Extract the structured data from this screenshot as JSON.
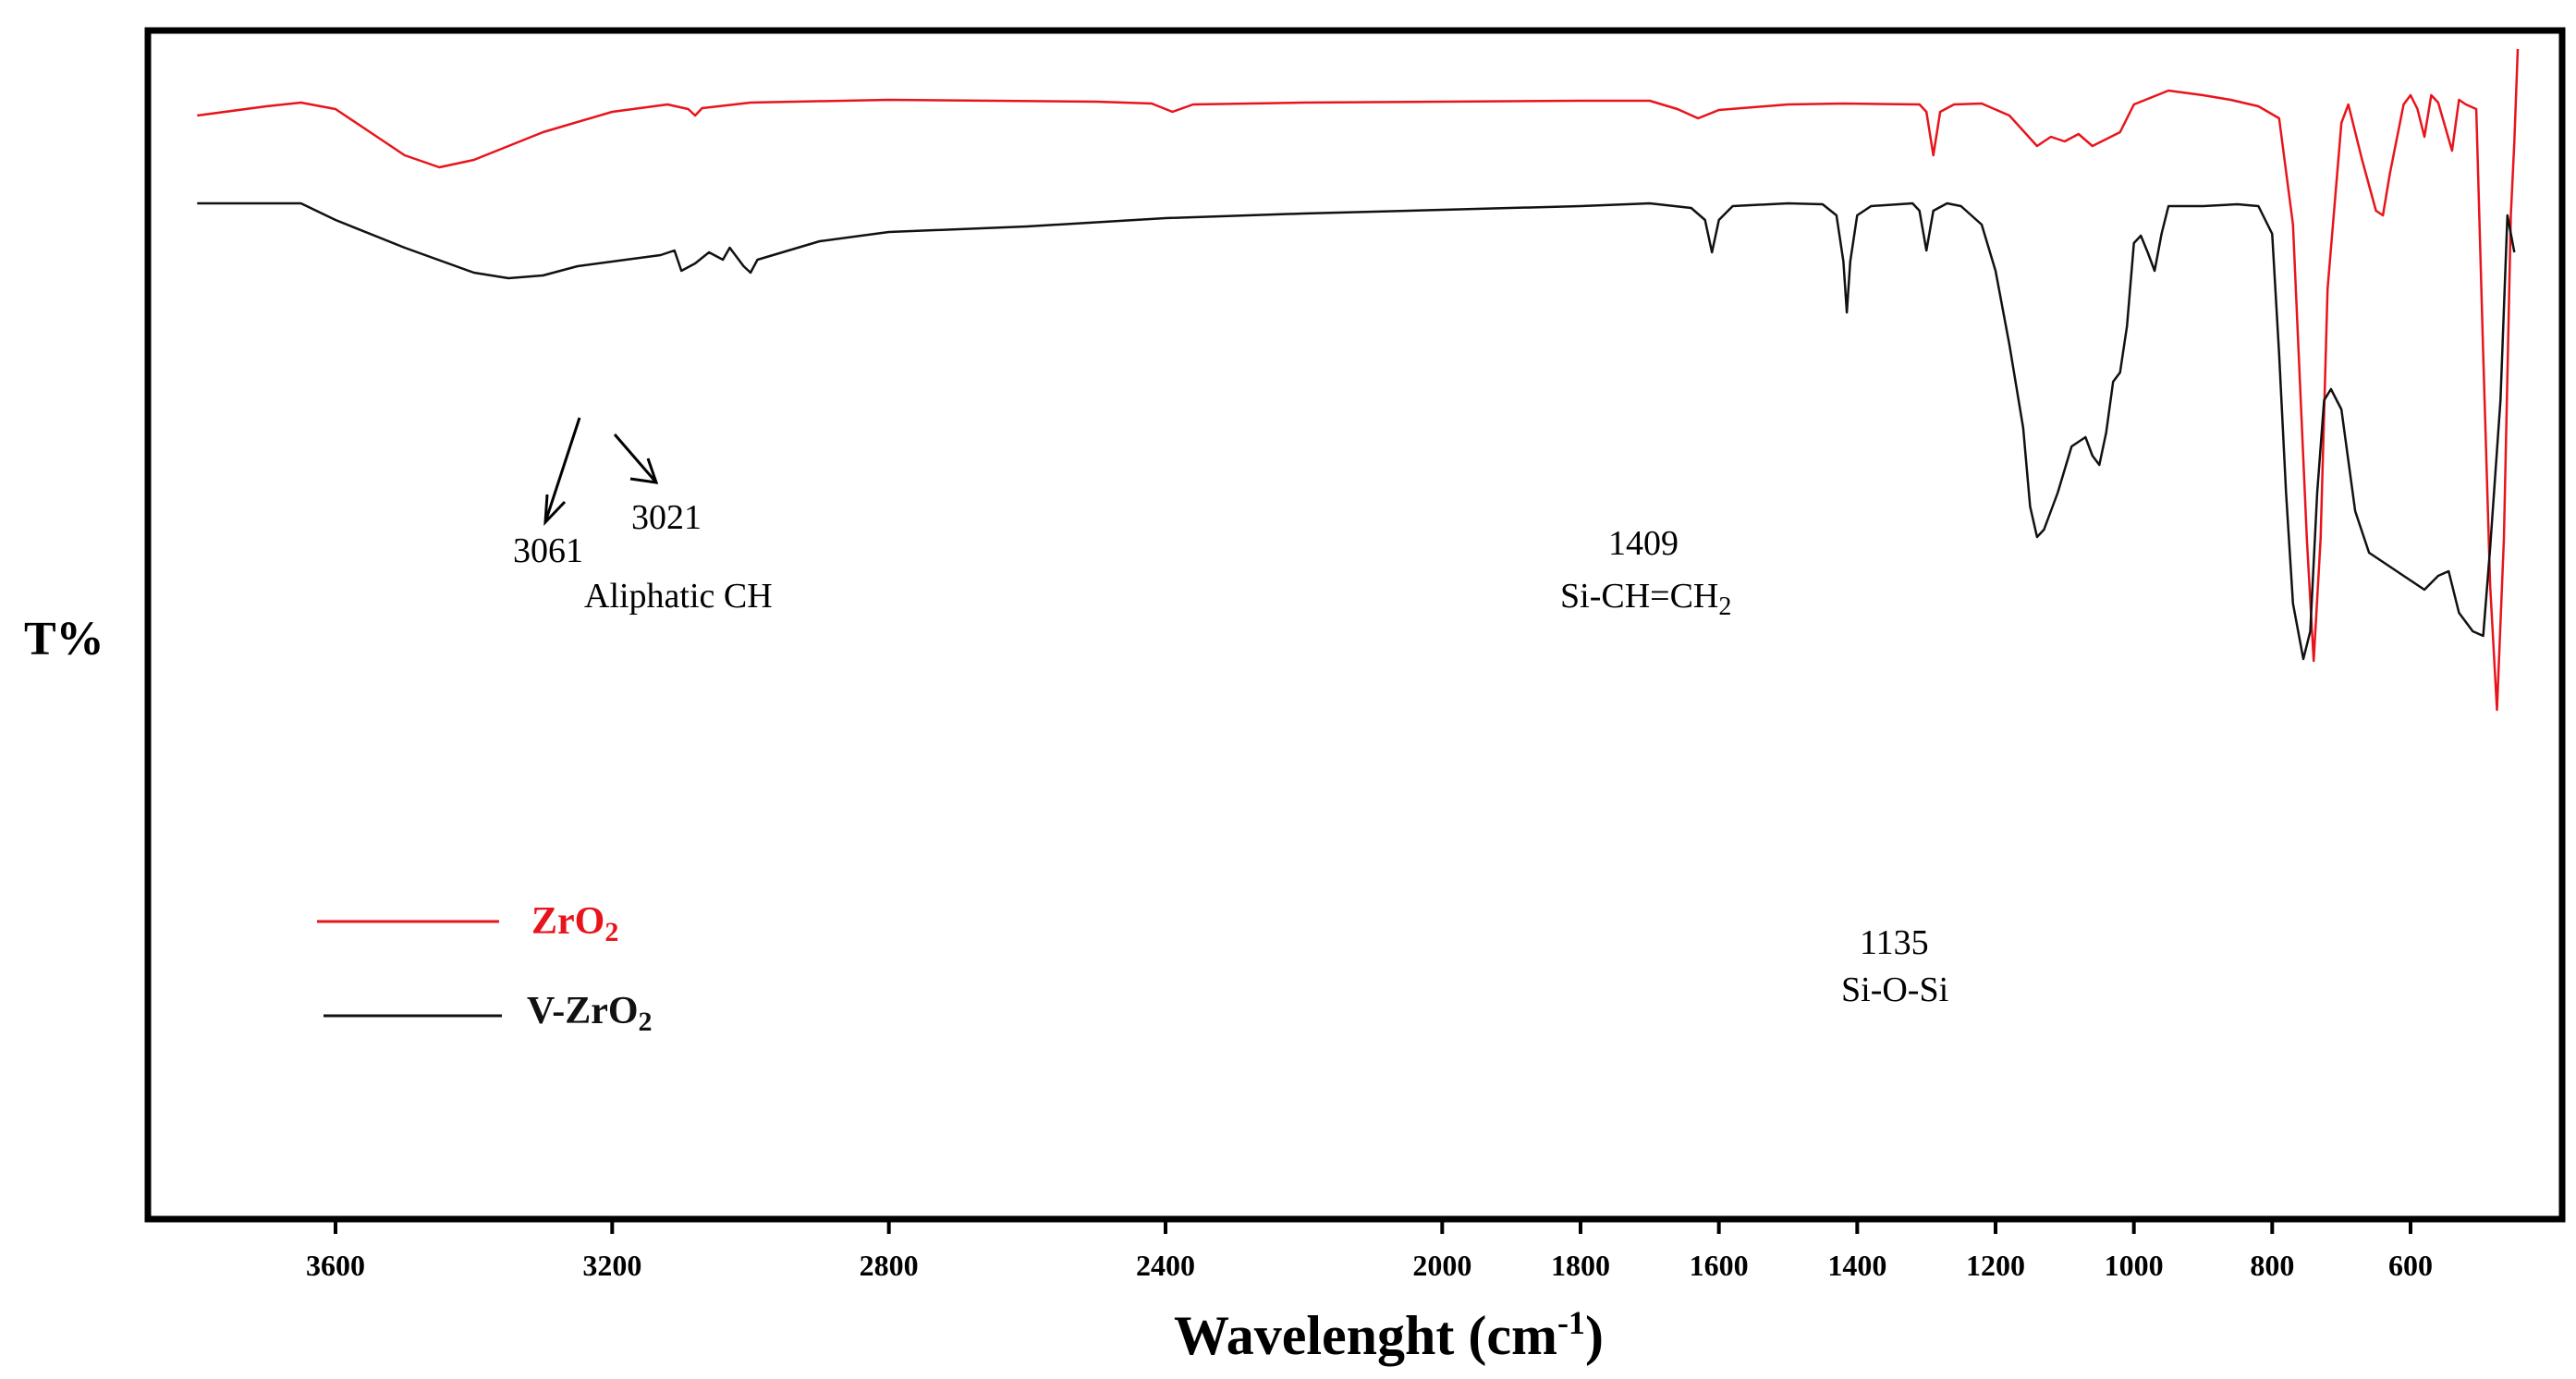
{
  "chart_data": {
    "type": "line",
    "title": "",
    "xlabel": "Wavelenght (cm",
    "xlabel_sup": "-1",
    "xlabel_close": ")",
    "ylabel": "T%",
    "xlim": [
      3800,
      450
    ],
    "x_reversed": true,
    "xticks": [
      "3600",
      "3200",
      "2800",
      "2400",
      "2000",
      "1800",
      "1600",
      "1400",
      "1200",
      "1000",
      "800",
      "600"
    ],
    "grid": false,
    "legend_position": "middle-left",
    "series": [
      {
        "name": "ZrO",
        "subscript": "2",
        "color": "#e8141b",
        "points": [
          [
            3800,
            92
          ],
          [
            3700,
            82
          ],
          [
            3650,
            78
          ],
          [
            3600,
            85
          ],
          [
            3550,
            110
          ],
          [
            3500,
            135
          ],
          [
            3450,
            148
          ],
          [
            3400,
            140
          ],
          [
            3300,
            110
          ],
          [
            3200,
            88
          ],
          [
            3120,
            80
          ],
          [
            3090,
            85
          ],
          [
            3080,
            92
          ],
          [
            3070,
            84
          ],
          [
            3000,
            78
          ],
          [
            2800,
            75
          ],
          [
            2500,
            77
          ],
          [
            2420,
            79
          ],
          [
            2390,
            88
          ],
          [
            2360,
            80
          ],
          [
            2200,
            78
          ],
          [
            1800,
            76
          ],
          [
            1700,
            76
          ],
          [
            1660,
            85
          ],
          [
            1630,
            95
          ],
          [
            1600,
            86
          ],
          [
            1500,
            80
          ],
          [
            1420,
            79
          ],
          [
            1310,
            80
          ],
          [
            1300,
            88
          ],
          [
            1290,
            135
          ],
          [
            1280,
            88
          ],
          [
            1260,
            80
          ],
          [
            1220,
            79
          ],
          [
            1180,
            92
          ],
          [
            1140,
            125
          ],
          [
            1120,
            115
          ],
          [
            1100,
            120
          ],
          [
            1080,
            112
          ],
          [
            1060,
            125
          ],
          [
            1020,
            110
          ],
          [
            1000,
            80
          ],
          [
            950,
            65
          ],
          [
            900,
            70
          ],
          [
            860,
            75
          ],
          [
            820,
            82
          ],
          [
            790,
            95
          ],
          [
            770,
            210
          ],
          [
            760,
            380
          ],
          [
            750,
            550
          ],
          [
            740,
            682
          ],
          [
            730,
            550
          ],
          [
            720,
            280
          ],
          [
            700,
            100
          ],
          [
            690,
            80
          ],
          [
            670,
            140
          ],
          [
            650,
            195
          ],
          [
            640,
            200
          ],
          [
            630,
            155
          ],
          [
            610,
            80
          ],
          [
            600,
            70
          ],
          [
            590,
            85
          ],
          [
            580,
            115
          ],
          [
            570,
            70
          ],
          [
            560,
            78
          ],
          [
            540,
            130
          ],
          [
            530,
            75
          ],
          [
            520,
            80
          ],
          [
            505,
            85
          ],
          [
            495,
            350
          ],
          [
            485,
            600
          ],
          [
            475,
            735
          ],
          [
            465,
            550
          ],
          [
            455,
            200
          ],
          [
            450,
            120
          ],
          [
            445,
            20
          ]
        ]
      },
      {
        "name": "V-ZrO",
        "subscript": "2",
        "color": "#111111",
        "points": [
          [
            3800,
            187
          ],
          [
            3650,
            187
          ],
          [
            3600,
            205
          ],
          [
            3500,
            235
          ],
          [
            3400,
            262
          ],
          [
            3350,
            268
          ],
          [
            3300,
            265
          ],
          [
            3250,
            255
          ],
          [
            3130,
            243
          ],
          [
            3110,
            238
          ],
          [
            3100,
            260
          ],
          [
            3080,
            252
          ],
          [
            3060,
            240
          ],
          [
            3040,
            248
          ],
          [
            3030,
            235
          ],
          [
            3010,
            255
          ],
          [
            3000,
            262
          ],
          [
            2990,
            248
          ],
          [
            2900,
            228
          ],
          [
            2800,
            218
          ],
          [
            2600,
            212
          ],
          [
            2400,
            203
          ],
          [
            2200,
            198
          ],
          [
            2000,
            194
          ],
          [
            1800,
            190
          ],
          [
            1700,
            187
          ],
          [
            1640,
            192
          ],
          [
            1620,
            205
          ],
          [
            1610,
            240
          ],
          [
            1600,
            205
          ],
          [
            1580,
            190
          ],
          [
            1500,
            187
          ],
          [
            1450,
            188
          ],
          [
            1430,
            200
          ],
          [
            1420,
            250
          ],
          [
            1415,
            305
          ],
          [
            1410,
            250
          ],
          [
            1400,
            200
          ],
          [
            1380,
            190
          ],
          [
            1320,
            187
          ],
          [
            1310,
            195
          ],
          [
            1300,
            238
          ],
          [
            1290,
            195
          ],
          [
            1270,
            187
          ],
          [
            1250,
            190
          ],
          [
            1220,
            210
          ],
          [
            1200,
            260
          ],
          [
            1180,
            340
          ],
          [
            1160,
            430
          ],
          [
            1150,
            515
          ],
          [
            1140,
            548
          ],
          [
            1130,
            540
          ],
          [
            1110,
            500
          ],
          [
            1090,
            450
          ],
          [
            1070,
            440
          ],
          [
            1060,
            460
          ],
          [
            1050,
            470
          ],
          [
            1040,
            435
          ],
          [
            1030,
            380
          ],
          [
            1020,
            370
          ],
          [
            1010,
            320
          ],
          [
            1000,
            230
          ],
          [
            990,
            222
          ],
          [
            980,
            240
          ],
          [
            970,
            260
          ],
          [
            960,
            220
          ],
          [
            950,
            190
          ],
          [
            900,
            190
          ],
          [
            850,
            188
          ],
          [
            820,
            190
          ],
          [
            800,
            220
          ],
          [
            790,
            350
          ],
          [
            780,
            500
          ],
          [
            770,
            620
          ],
          [
            755,
            680
          ],
          [
            745,
            650
          ],
          [
            735,
            500
          ],
          [
            725,
            400
          ],
          [
            715,
            388
          ],
          [
            700,
            410
          ],
          [
            680,
            520
          ],
          [
            660,
            565
          ],
          [
            640,
            575
          ],
          [
            610,
            590
          ],
          [
            580,
            605
          ],
          [
            560,
            590
          ],
          [
            545,
            585
          ],
          [
            530,
            630
          ],
          [
            510,
            650
          ],
          [
            495,
            655
          ],
          [
            485,
            560
          ],
          [
            470,
            400
          ],
          [
            460,
            200
          ],
          [
            450,
            240
          ]
        ]
      }
    ],
    "annotations": [
      {
        "id": "a3061",
        "text": "3061",
        "x": 3061
      },
      {
        "id": "a3021",
        "text": "3021",
        "x": 3021
      },
      {
        "id": "aliph",
        "text": "Aliphatic CH"
      },
      {
        "id": "a1409",
        "text": "1409",
        "x": 1409
      },
      {
        "id": "sivinyl",
        "text": "Si-CH=CH",
        "subscript": "2"
      },
      {
        "id": "a1135",
        "text": "1135",
        "x": 1135
      },
      {
        "id": "siosi",
        "text": "Si-O-Si"
      }
    ]
  }
}
